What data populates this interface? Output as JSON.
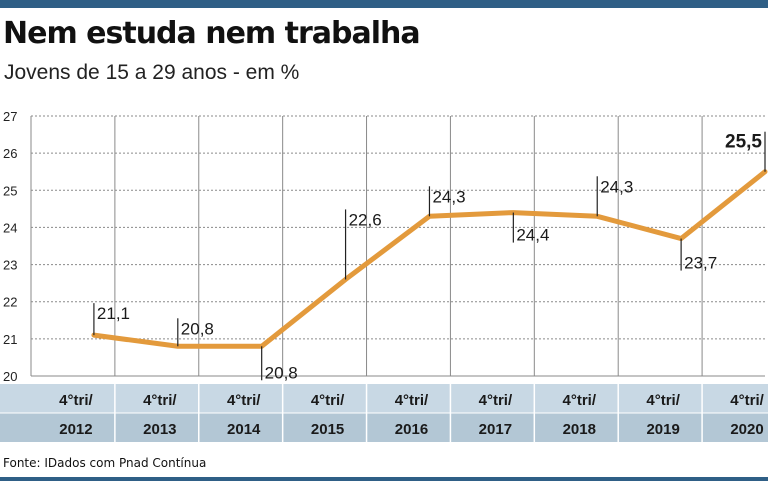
{
  "title": "Nem estuda nem trabalha",
  "subtitle": "Jovens de 15 a 29 anos - em %",
  "source": "Fonte: IDados com Pnad Contínua",
  "colors": {
    "line": "#e39a3c",
    "band_light": "#c8d8e4",
    "band_dark": "#b3c7d5",
    "top_bar": "#2f5f86",
    "grid": "#8a8a8a"
  },
  "chart_data": {
    "type": "line",
    "title": "Nem estuda nem trabalha",
    "subtitle": "Jovens de 15 a 29 anos - em %",
    "categories": [
      [
        "4°tri/",
        "2012"
      ],
      [
        "4°tri/",
        "2013"
      ],
      [
        "4°tri/",
        "2014"
      ],
      [
        "4°tri/",
        "2015"
      ],
      [
        "4°tri/",
        "2016"
      ],
      [
        "4°tri/",
        "2017"
      ],
      [
        "4°tri/",
        "2018"
      ],
      [
        "4°tri/",
        "2019"
      ],
      [
        "4°tri/",
        "2020"
      ]
    ],
    "x_range": [
      2012.0,
      2020.75
    ],
    "series": [
      {
        "x": [
          2012.75,
          2013.75,
          2014.75,
          2015.75,
          2016.75,
          2017.75,
          2018.75,
          2019.75,
          2020.75
        ],
        "values": [
          21.1,
          20.8,
          20.8,
          22.6,
          24.3,
          24.4,
          24.3,
          23.7,
          25.5
        ],
        "labels": [
          "21,1",
          "20,8",
          "20,8",
          "22,6",
          "24,3",
          "24,4",
          "24,3",
          "23,7",
          "25,5"
        ]
      }
    ],
    "yticks": [
      20,
      21,
      22,
      23,
      24,
      25,
      26,
      27
    ],
    "ylim": [
      20,
      27
    ],
    "grid": true,
    "xlabel": "",
    "ylabel": ""
  }
}
